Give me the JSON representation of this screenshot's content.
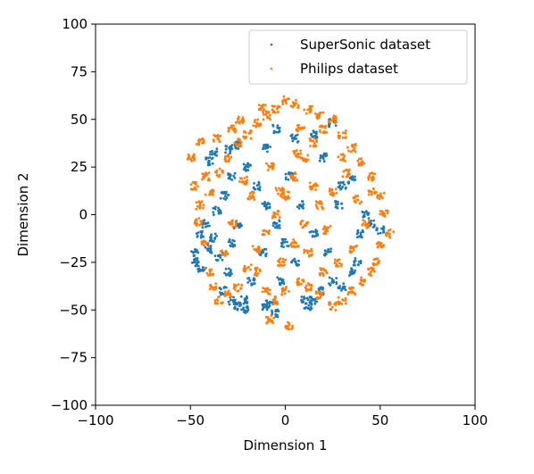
{
  "chart_data": {
    "type": "scatter",
    "title": "",
    "xlabel": "Dimension 1",
    "ylabel": "Dimension 2",
    "xlim": [
      -100,
      100
    ],
    "ylim": [
      -100,
      100
    ],
    "grid": false,
    "legend": "top-right",
    "x_ticks": [
      -100,
      -50,
      0,
      50,
      100
    ],
    "y_ticks": [
      -100,
      -75,
      -50,
      -25,
      0,
      25,
      50,
      75,
      100
    ],
    "x_tick_labels": [
      "−100",
      "−50",
      "0",
      "50",
      "100"
    ],
    "y_tick_labels": [
      "−100",
      "−75",
      "−50",
      "−25",
      "0",
      "25",
      "50",
      "75",
      "100"
    ],
    "series": [
      {
        "name": "SuperSonic dataset",
        "color": "#1f77b4",
        "points": [
          [
            -45,
            -10
          ],
          [
            -48,
            -20
          ],
          [
            -47,
            -25
          ],
          [
            -44,
            -28
          ],
          [
            -40,
            -18
          ],
          [
            -42,
            -5
          ],
          [
            -38,
            -12
          ],
          [
            -35,
            -22
          ],
          [
            -30,
            -30
          ],
          [
            -28,
            -15
          ],
          [
            -25,
            -5
          ],
          [
            -36,
            2
          ],
          [
            -32,
            10
          ],
          [
            -28,
            20
          ],
          [
            -40,
            28
          ],
          [
            -38,
            33
          ],
          [
            -30,
            34
          ],
          [
            -26,
            36
          ],
          [
            -20,
            25
          ],
          [
            -15,
            15
          ],
          [
            -10,
            5
          ],
          [
            -5,
            -5
          ],
          [
            -12,
            -20
          ],
          [
            -18,
            -35
          ],
          [
            -22,
            -45
          ],
          [
            -20,
            -50
          ],
          [
            -10,
            -48
          ],
          [
            -5,
            -52
          ],
          [
            -8,
            -47
          ],
          [
            10,
            -45
          ],
          [
            12,
            -48
          ],
          [
            15,
            -45
          ],
          [
            18,
            -40
          ],
          [
            25,
            -35
          ],
          [
            30,
            -38
          ],
          [
            35,
            -30
          ],
          [
            38,
            -25
          ],
          [
            40,
            -10
          ],
          [
            42,
            0
          ],
          [
            45,
            -5
          ],
          [
            50,
            -8
          ],
          [
            30,
            15
          ],
          [
            20,
            30
          ],
          [
            15,
            42
          ],
          [
            25,
            48
          ],
          [
            5,
            40
          ],
          [
            -5,
            45
          ],
          [
            -10,
            35
          ],
          [
            2,
            20
          ],
          [
            8,
            5
          ],
          [
            15,
            -10
          ],
          [
            5,
            -25
          ],
          [
            -2,
            -35
          ],
          [
            22,
            -20
          ],
          [
            28,
            5
          ],
          [
            35,
            18
          ],
          [
            -33,
            -40
          ],
          [
            -28,
            -45
          ],
          [
            -25,
            -48
          ],
          [
            0,
            -15
          ]
        ]
      },
      {
        "name": "Philips dataset",
        "color": "#ff7f0e",
        "points": [
          [
            -50,
            30
          ],
          [
            -48,
            15
          ],
          [
            -45,
            5
          ],
          [
            -42,
            -15
          ],
          [
            -40,
            -30
          ],
          [
            -38,
            -38
          ],
          [
            -35,
            -45
          ],
          [
            -30,
            -42
          ],
          [
            -25,
            -38
          ],
          [
            -20,
            -28
          ],
          [
            -15,
            -18
          ],
          [
            -10,
            -10
          ],
          [
            -5,
            0
          ],
          [
            0,
            10
          ],
          [
            5,
            20
          ],
          [
            10,
            30
          ],
          [
            15,
            38
          ],
          [
            20,
            45
          ],
          [
            25,
            50
          ],
          [
            0,
            60
          ],
          [
            -5,
            55
          ],
          [
            -10,
            52
          ],
          [
            -15,
            48
          ],
          [
            -20,
            42
          ],
          [
            -25,
            38
          ],
          [
            -30,
            30
          ],
          [
            -35,
            22
          ],
          [
            -40,
            12
          ],
          [
            -45,
            38
          ],
          [
            -36,
            40
          ],
          [
            -28,
            45
          ],
          [
            -24,
            50
          ],
          [
            -12,
            56
          ],
          [
            5,
            58
          ],
          [
            12,
            55
          ],
          [
            18,
            52
          ],
          [
            30,
            42
          ],
          [
            35,
            35
          ],
          [
            40,
            28
          ],
          [
            45,
            20
          ],
          [
            50,
            10
          ],
          [
            52,
            0
          ],
          [
            55,
            -10
          ],
          [
            50,
            -15
          ],
          [
            48,
            -25
          ],
          [
            45,
            -30
          ],
          [
            40,
            -35
          ],
          [
            35,
            -40
          ],
          [
            30,
            -45
          ],
          [
            25,
            -48
          ],
          [
            18,
            -42
          ],
          [
            12,
            -38
          ],
          [
            8,
            -35
          ],
          [
            0,
            -40
          ],
          [
            -5,
            -45
          ],
          [
            -10,
            -40
          ],
          [
            -2,
            -25
          ],
          [
            5,
            -15
          ],
          [
            10,
            -5
          ],
          [
            18,
            5
          ],
          [
            25,
            12
          ],
          [
            32,
            22
          ],
          [
            38,
            8
          ],
          [
            42,
            -5
          ],
          [
            28,
            -25
          ],
          [
            20,
            -30
          ],
          [
            -8,
            25
          ],
          [
            -18,
            10
          ],
          [
            -28,
            -5
          ],
          [
            -32,
            -20
          ],
          [
            2,
            -58
          ],
          [
            15,
            15
          ],
          [
            22,
            -8
          ],
          [
            -42,
            20
          ],
          [
            -46,
            -4
          ],
          [
            46,
            12
          ],
          [
            36,
            -18
          ],
          [
            6,
            32
          ],
          [
            -14,
            -30
          ],
          [
            -3,
            12
          ],
          [
            12,
            -20
          ],
          [
            30,
            30
          ],
          [
            -22,
            18
          ],
          [
            8,
            45
          ],
          [
            -8,
            -55
          ]
        ]
      }
    ]
  }
}
